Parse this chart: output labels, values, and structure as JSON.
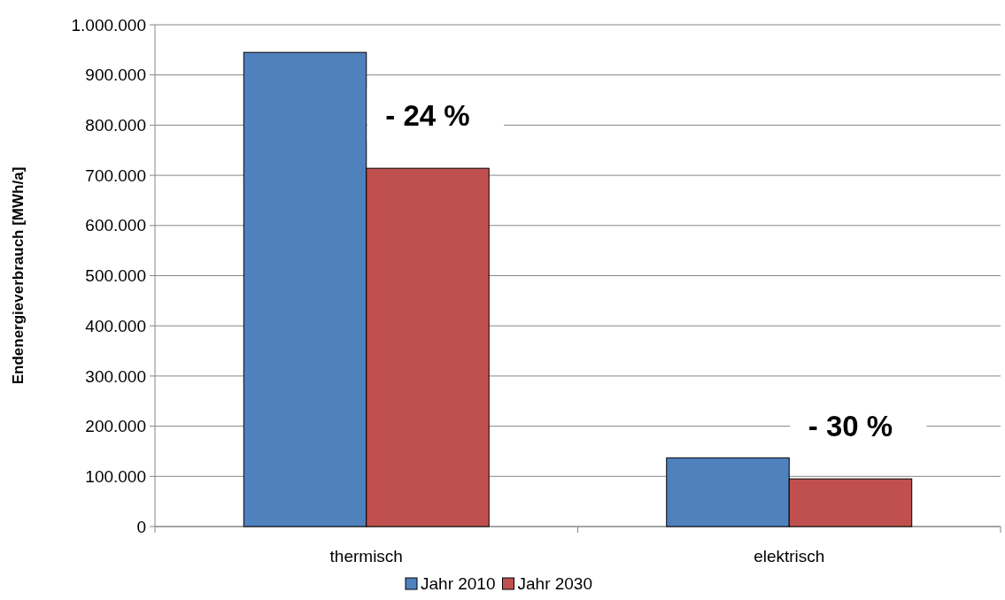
{
  "chart_data": {
    "type": "bar",
    "ylabel": "Endenergieverbrauch [MWh/a]",
    "categories": [
      "thermisch",
      "elektrisch"
    ],
    "series": [
      {
        "name": "Jahr 2010",
        "color": "#4f81bd",
        "values": [
          945000,
          137000
        ]
      },
      {
        "name": "Jahr 2030",
        "color": "#c0504d",
        "values": [
          714000,
          95000
        ]
      }
    ],
    "ylim": [
      0,
      1000000
    ],
    "yticks": [
      {
        "value": 0,
        "label": "0"
      },
      {
        "value": 100000,
        "label": "100.000"
      },
      {
        "value": 200000,
        "label": "200.000"
      },
      {
        "value": 300000,
        "label": "300.000"
      },
      {
        "value": 400000,
        "label": "400.000"
      },
      {
        "value": 500000,
        "label": "500.000"
      },
      {
        "value": 600000,
        "label": "600.000"
      },
      {
        "value": 700000,
        "label": "700.000"
      },
      {
        "value": 800000,
        "label": "800.000"
      },
      {
        "value": 900000,
        "label": "900.000"
      },
      {
        "value": 1000000,
        "label": "1.000.000"
      }
    ],
    "annotations": [
      "- 24 %",
      "- 30 %"
    ],
    "grid": "y",
    "legend": "bottom"
  }
}
